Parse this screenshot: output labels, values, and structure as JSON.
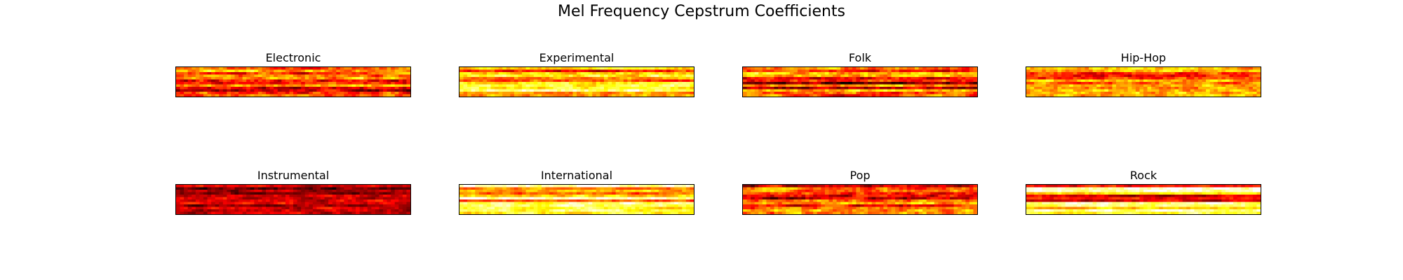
{
  "figure": {
    "title": "Mel Frequency Cepstrum Coefficients"
  },
  "chart_data": {
    "type": "heatmap",
    "title": "Mel Frequency Cepstrum Coefficients",
    "colormap": "hot",
    "grid": false,
    "axes_visible": false,
    "panels": [
      {
        "title": "Electronic"
      },
      {
        "title": "Experimental"
      },
      {
        "title": "Folk"
      },
      {
        "title": "Hip-Hop"
      },
      {
        "title": "Instrumental"
      },
      {
        "title": "International"
      },
      {
        "title": "Pop"
      },
      {
        "title": "Rock"
      }
    ]
  }
}
